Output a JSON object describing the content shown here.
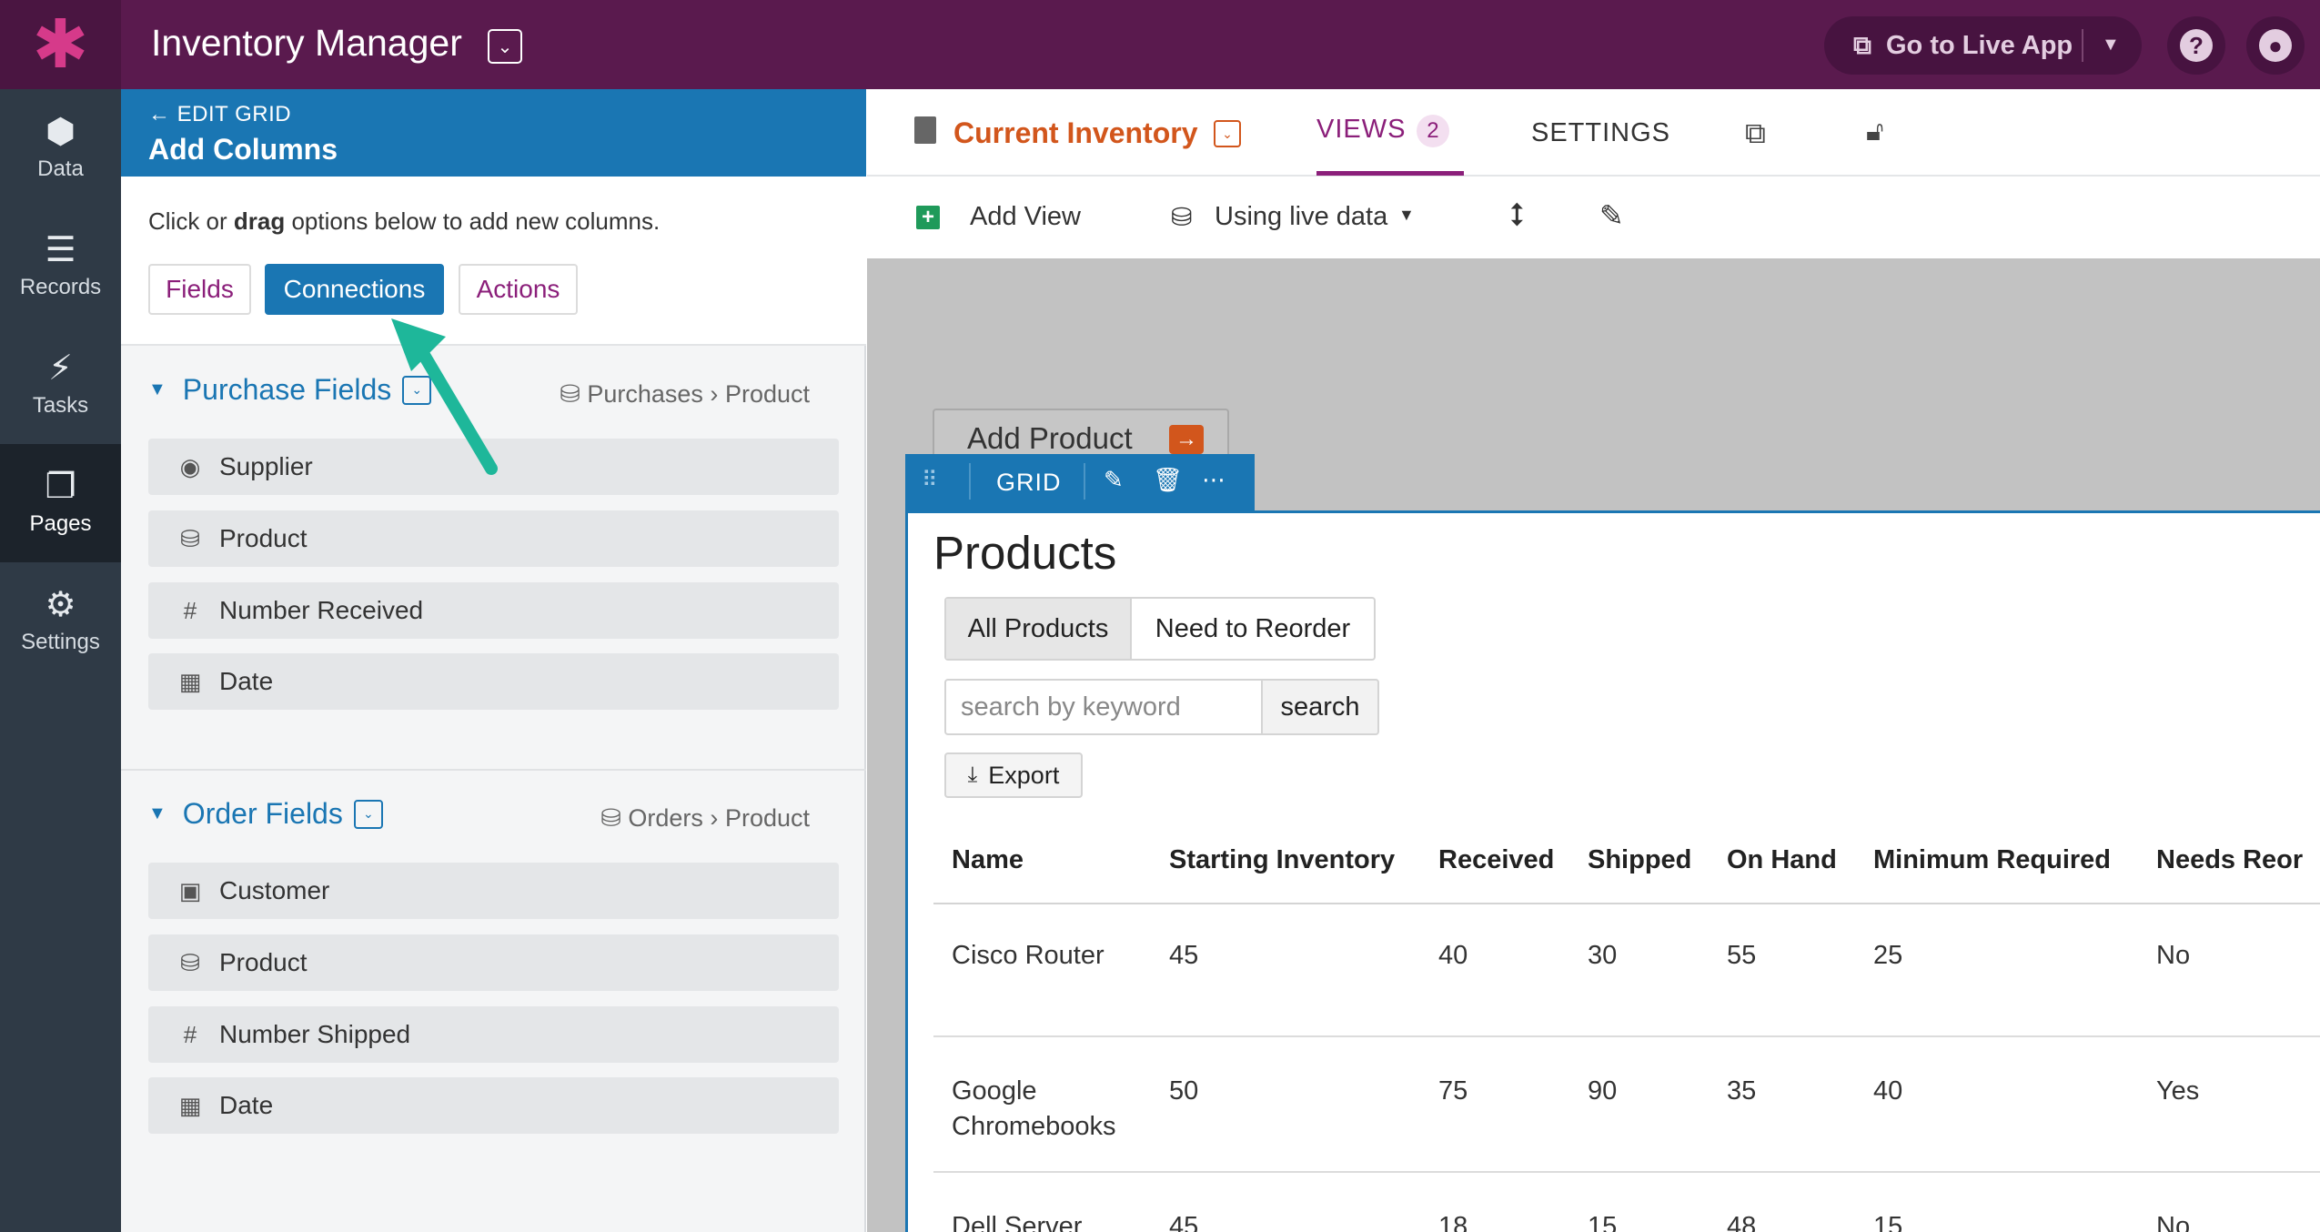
{
  "topbar": {
    "logo_icon": "asterisk-logo",
    "app_title": "Inventory Manager",
    "live_app_label": "Go to Live App",
    "brand_color": "#5a1a4e"
  },
  "sidebar": {
    "items": [
      {
        "label": "Data",
        "icon": "data-icon"
      },
      {
        "label": "Records",
        "icon": "database-icon"
      },
      {
        "label": "Tasks",
        "icon": "bolt-icon"
      },
      {
        "label": "Pages",
        "icon": "pages-icon",
        "active": true
      },
      {
        "label": "Settings",
        "icon": "gear-icon"
      }
    ]
  },
  "left_panel": {
    "back_label": "EDIT GRID",
    "title": "Add Columns",
    "help_prefix": "Click or ",
    "help_bold": "drag",
    "help_suffix": " options below to add new columns.",
    "tabs": [
      "Fields",
      "Connections",
      "Actions"
    ],
    "selected_tab": "Connections",
    "groups": [
      {
        "title": "Purchase Fields",
        "path_from": "Purchases",
        "path_to": "Product",
        "fields": [
          {
            "label": "Supplier",
            "icon": "radio-icon"
          },
          {
            "label": "Product",
            "icon": "connection-icon"
          },
          {
            "label": "Number Received",
            "icon": "hash-icon"
          },
          {
            "label": "Date",
            "icon": "calendar-icon"
          }
        ]
      },
      {
        "title": "Order Fields",
        "path_from": "Orders",
        "path_to": "Product",
        "fields": [
          {
            "label": "Customer",
            "icon": "contact-icon"
          },
          {
            "label": "Product",
            "icon": "connection-icon"
          },
          {
            "label": "Number Shipped",
            "icon": "hash-icon"
          },
          {
            "label": "Date",
            "icon": "calendar-icon"
          }
        ]
      }
    ]
  },
  "right_panel": {
    "page_name": "Current Inventory",
    "views_label": "VIEWS",
    "views_count": "2",
    "settings_label": "SETTINGS",
    "add_view_label": "Add View",
    "live_data_label": "Using live data",
    "add_product_label": "Add Product",
    "grid_label": "GRID",
    "grid_title": "Products",
    "filters": [
      "All Products",
      "Need to Reorder"
    ],
    "active_filter": "All Products",
    "search_placeholder": "search by keyword",
    "search_button": "search",
    "export_label": "Export",
    "table": {
      "headers": [
        "Name",
        "Starting Inventory",
        "Received",
        "Shipped",
        "On Hand",
        "Minimum Required",
        "Needs Reor"
      ],
      "rows": [
        {
          "name_line1": "Cisco Router",
          "name_line2": "",
          "starting": "45",
          "received": "40",
          "shipped": "30",
          "on_hand": "55",
          "minimum": "25",
          "needs": "No"
        },
        {
          "name_line1": "Google",
          "name_line2": "Chromebooks",
          "starting": "50",
          "received": "75",
          "shipped": "90",
          "on_hand": "35",
          "minimum": "40",
          "needs": "Yes"
        },
        {
          "name_line1": "Dell Server",
          "name_line2": "",
          "starting": "45",
          "received": "18",
          "shipped": "15",
          "on_hand": "48",
          "minimum": "15",
          "needs": "No"
        }
      ]
    }
  }
}
